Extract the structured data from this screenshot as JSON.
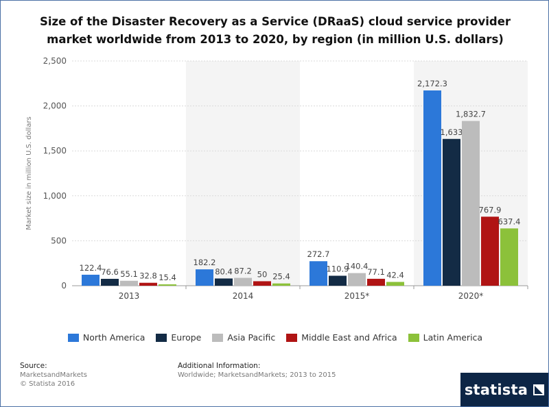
{
  "title_line1": "Size of the Disaster Recovery as a Service (DRaaS) cloud service provider",
  "title_line2": "market worldwide from 2013 to 2020, by region (in million U.S. dollars)",
  "chart_data": {
    "type": "bar",
    "title": "Size of the Disaster Recovery as a Service (DRaaS) cloud service provider market worldwide from 2013 to 2020, by region (in million U.S. dollars)",
    "xlabel": "",
    "ylabel": "Market size in million U.S. dollars",
    "ylim": [
      0,
      2500
    ],
    "yticks": [
      0,
      500,
      1000,
      1500,
      2000,
      2500
    ],
    "ytick_labels": [
      "0",
      "500",
      "1,000",
      "1,500",
      "2,000",
      "2,500"
    ],
    "categories": [
      "2013",
      "2014",
      "2015*",
      "2020*"
    ],
    "grid": true,
    "legend_position": "bottom",
    "series": [
      {
        "name": "North America",
        "color": "#2c78d9",
        "values": [
          122.4,
          182.2,
          272.7,
          2172.3
        ],
        "labels": [
          "122.4",
          "182.2",
          "272.7",
          "2,172.3"
        ]
      },
      {
        "name": "Europe",
        "color": "#132b45",
        "values": [
          76.6,
          80.4,
          110.9,
          1633
        ],
        "labels": [
          "76.6",
          "80.4",
          "110.9",
          "1,633"
        ]
      },
      {
        "name": "Asia Pacific",
        "color": "#bcbcbc",
        "values": [
          55.1,
          87.2,
          140.4,
          1832.7
        ],
        "labels": [
          "55.1",
          "87.2",
          "140.4",
          "1,832.7"
        ]
      },
      {
        "name": "Middle East and Africa",
        "color": "#b01414",
        "values": [
          32.8,
          50,
          77.1,
          767.9
        ],
        "labels": [
          "32.8",
          "50",
          "77.1",
          "767.9"
        ]
      },
      {
        "name": "Latin America",
        "color": "#8cc13a",
        "values": [
          15.4,
          25.4,
          42.4,
          637.4
        ],
        "labels": [
          "15.4",
          "25.4",
          "42.4",
          "637.4"
        ]
      }
    ]
  },
  "source": {
    "label": "Source:",
    "line1": "MarketsandMarkets",
    "line2": "© Statista 2016"
  },
  "additional": {
    "label": "Additional Information:",
    "text": "Worldwide; MarketsandMarkets; 2013 to 2015"
  },
  "brand": {
    "name": "statista"
  }
}
